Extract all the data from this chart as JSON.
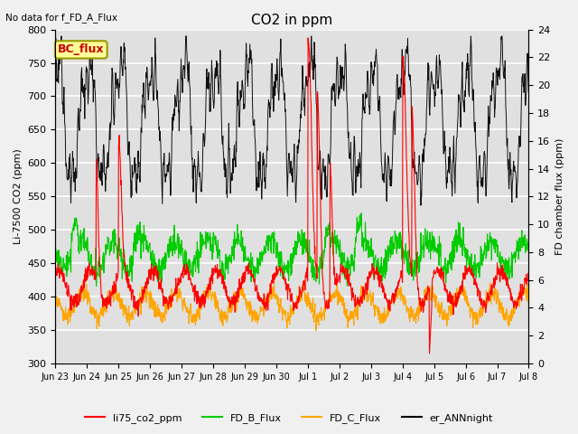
{
  "title": "CO2 in ppm",
  "top_left_text": "No data for f_FD_A_Flux",
  "ylabel_left": "Li-7500 CO2 (ppm)",
  "ylabel_right": "FD chamber flux (ppm)",
  "ylim_left": [
    300,
    800
  ],
  "ylim_right": [
    0,
    24
  ],
  "background_color": "#f0f0f0",
  "plot_bg_color": "#e0e0e0",
  "grid_color": "#ffffff",
  "bc_flux_label": "BC_flux",
  "bc_flux_box_color": "#ffff99",
  "bc_flux_border_color": "#999900",
  "bc_flux_text_color": "#cc0000",
  "legend_entries": [
    "li75_co2_ppm",
    "FD_B_Flux",
    "FD_C_Flux",
    "er_ANNnight"
  ],
  "legend_colors": [
    "#ff0000",
    "#00cc00",
    "#ffa500",
    "#000000"
  ],
  "line_colors": {
    "li75_co2_ppm": "#ff0000",
    "FD_B_Flux": "#00cc00",
    "FD_C_Flux": "#ffa500",
    "er_ANNnight": "#111111"
  },
  "x_tick_labels": [
    "Jun 23",
    "Jun 24",
    "Jun 25",
    "Jun 26",
    "Jun 27",
    "Jun 28",
    "Jun 29",
    "Jun 30",
    "Jul 1",
    "Jul 2",
    "Jul 3",
    "Jul 4",
    "Jul 5",
    "Jul 6",
    "Jul 7",
    "Jul 8"
  ],
  "x_tick_positions": [
    0,
    1,
    2,
    3,
    4,
    5,
    6,
    7,
    8,
    9,
    10,
    11,
    12,
    13,
    14,
    15
  ],
  "yticks_left": [
    300,
    350,
    400,
    450,
    500,
    550,
    600,
    650,
    700,
    750,
    800
  ],
  "yticks_right": [
    0,
    2,
    4,
    6,
    8,
    10,
    12,
    14,
    16,
    18,
    20,
    22,
    24
  ]
}
